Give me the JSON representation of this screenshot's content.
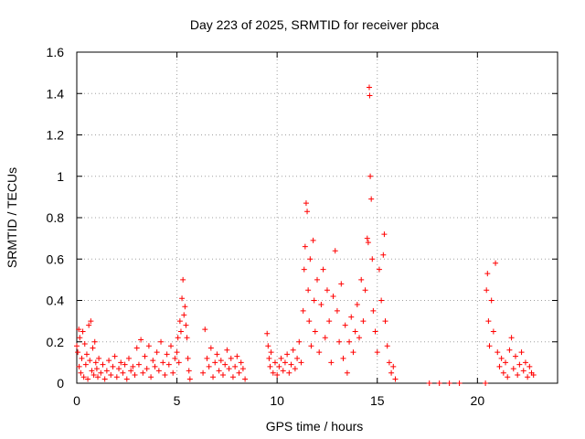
{
  "chart_data": {
    "type": "scatter",
    "title": "Day 223 of 2025, SRMTID for receiver pbca",
    "xlabel": "GPS time / hours",
    "ylabel": "SRMTID / TECUs",
    "xlim": [
      0,
      24
    ],
    "ylim": [
      0,
      1.6
    ],
    "x_ticks": [
      0,
      5,
      10,
      15,
      20
    ],
    "x_tick_labels": [
      "0",
      "5",
      "10",
      "15",
      "20"
    ],
    "y_ticks": [
      0,
      0.2,
      0.4,
      0.6,
      0.8,
      1.0,
      1.2,
      1.4,
      1.6
    ],
    "y_tick_labels": [
      "0",
      "0.2",
      "0.4",
      "0.6",
      "0.8",
      "1",
      "1.2",
      "1.4",
      "1.6"
    ],
    "grid": true,
    "marker": "+",
    "series": [
      {
        "name": "SRMTID",
        "color": "#ff0000",
        "points": [
          [
            0.0,
            0.18
          ],
          [
            0.05,
            0.15
          ],
          [
            0.1,
            0.26
          ],
          [
            0.12,
            0.08
          ],
          [
            0.15,
            0.22
          ],
          [
            0.2,
            0.05
          ],
          [
            0.25,
            0.12
          ],
          [
            0.3,
            0.25
          ],
          [
            0.35,
            0.03
          ],
          [
            0.4,
            0.19
          ],
          [
            0.45,
            0.09
          ],
          [
            0.5,
            0.14
          ],
          [
            0.55,
            0.02
          ],
          [
            0.6,
            0.28
          ],
          [
            0.65,
            0.11
          ],
          [
            0.7,
            0.3
          ],
          [
            0.75,
            0.06
          ],
          [
            0.8,
            0.17
          ],
          [
            0.85,
            0.04
          ],
          [
            0.9,
            0.2
          ],
          [
            0.95,
            0.1
          ],
          [
            1.0,
            0.07
          ],
          [
            1.05,
            0.03
          ],
          [
            1.1,
            0.12
          ],
          [
            1.2,
            0.05
          ],
          [
            1.3,
            0.09
          ],
          [
            1.4,
            0.02
          ],
          [
            1.5,
            0.06
          ],
          [
            1.6,
            0.11
          ],
          [
            1.7,
            0.04
          ],
          [
            1.8,
            0.08
          ],
          [
            1.9,
            0.13
          ],
          [
            2.0,
            0.03
          ],
          [
            2.1,
            0.07
          ],
          [
            2.2,
            0.1
          ],
          [
            2.3,
            0.05
          ],
          [
            2.4,
            0.09
          ],
          [
            2.5,
            0.02
          ],
          [
            2.6,
            0.12
          ],
          [
            2.7,
            0.06
          ],
          [
            2.8,
            0.08
          ],
          [
            2.9,
            0.04
          ],
          [
            3.0,
            0.17
          ],
          [
            3.1,
            0.09
          ],
          [
            3.2,
            0.21
          ],
          [
            3.3,
            0.05
          ],
          [
            3.4,
            0.13
          ],
          [
            3.5,
            0.07
          ],
          [
            3.6,
            0.18
          ],
          [
            3.7,
            0.03
          ],
          [
            3.8,
            0.11
          ],
          [
            3.9,
            0.08
          ],
          [
            4.0,
            0.15
          ],
          [
            4.1,
            0.06
          ],
          [
            4.2,
            0.2
          ],
          [
            4.3,
            0.1
          ],
          [
            4.4,
            0.04
          ],
          [
            4.5,
            0.14
          ],
          [
            4.6,
            0.09
          ],
          [
            4.7,
            0.18
          ],
          [
            4.8,
            0.05
          ],
          [
            4.9,
            0.12
          ],
          [
            5.0,
            0.15
          ],
          [
            5.05,
            0.22
          ],
          [
            5.1,
            0.1
          ],
          [
            5.15,
            0.3
          ],
          [
            5.2,
            0.25
          ],
          [
            5.25,
            0.41
          ],
          [
            5.3,
            0.5
          ],
          [
            5.35,
            0.33
          ],
          [
            5.4,
            0.37
          ],
          [
            5.45,
            0.28
          ],
          [
            5.5,
            0.22
          ],
          [
            5.55,
            0.12
          ],
          [
            5.6,
            0.06
          ],
          [
            5.65,
            0.02
          ],
          [
            6.3,
            0.05
          ],
          [
            6.4,
            0.26
          ],
          [
            6.5,
            0.12
          ],
          [
            6.6,
            0.08
          ],
          [
            6.7,
            0.17
          ],
          [
            6.8,
            0.03
          ],
          [
            6.9,
            0.1
          ],
          [
            7.0,
            0.14
          ],
          [
            7.1,
            0.06
          ],
          [
            7.2,
            0.11
          ],
          [
            7.3,
            0.04
          ],
          [
            7.4,
            0.09
          ],
          [
            7.5,
            0.16
          ],
          [
            7.6,
            0.07
          ],
          [
            7.7,
            0.12
          ],
          [
            7.8,
            0.03
          ],
          [
            7.9,
            0.08
          ],
          [
            8.0,
            0.13
          ],
          [
            8.1,
            0.05
          ],
          [
            8.2,
            0.1
          ],
          [
            8.3,
            0.07
          ],
          [
            8.4,
            0.02
          ],
          [
            9.5,
            0.24
          ],
          [
            9.55,
            0.18
          ],
          [
            9.6,
            0.12
          ],
          [
            9.65,
            0.08
          ],
          [
            9.7,
            0.15
          ],
          [
            9.8,
            0.05
          ],
          [
            9.9,
            0.1
          ],
          [
            10.0,
            0.04
          ],
          [
            10.1,
            0.08
          ],
          [
            10.2,
            0.12
          ],
          [
            10.3,
            0.06
          ],
          [
            10.4,
            0.1
          ],
          [
            10.5,
            0.14
          ],
          [
            10.6,
            0.05
          ],
          [
            10.7,
            0.09
          ],
          [
            10.8,
            0.16
          ],
          [
            10.9,
            0.07
          ],
          [
            11.0,
            0.12
          ],
          [
            11.1,
            0.2
          ],
          [
            11.2,
            0.1
          ],
          [
            11.3,
            0.35
          ],
          [
            11.35,
            0.55
          ],
          [
            11.4,
            0.66
          ],
          [
            11.45,
            0.87
          ],
          [
            11.5,
            0.83
          ],
          [
            11.55,
            0.45
          ],
          [
            11.6,
            0.3
          ],
          [
            11.65,
            0.6
          ],
          [
            11.7,
            0.18
          ],
          [
            11.8,
            0.69
          ],
          [
            11.85,
            0.4
          ],
          [
            11.9,
            0.25
          ],
          [
            12.0,
            0.5
          ],
          [
            12.1,
            0.15
          ],
          [
            12.2,
            0.38
          ],
          [
            12.3,
            0.55
          ],
          [
            12.4,
            0.22
          ],
          [
            12.5,
            0.45
          ],
          [
            12.6,
            0.3
          ],
          [
            12.7,
            0.1
          ],
          [
            12.8,
            0.42
          ],
          [
            12.9,
            0.64
          ],
          [
            13.0,
            0.35
          ],
          [
            13.1,
            0.2
          ],
          [
            13.2,
            0.48
          ],
          [
            13.3,
            0.12
          ],
          [
            13.4,
            0.28
          ],
          [
            13.5,
            0.05
          ],
          [
            13.6,
            0.2
          ],
          [
            13.7,
            0.32
          ],
          [
            13.8,
            0.15
          ],
          [
            13.9,
            0.25
          ],
          [
            14.0,
            0.38
          ],
          [
            14.1,
            0.22
          ],
          [
            14.2,
            0.5
          ],
          [
            14.3,
            0.3
          ],
          [
            14.4,
            0.45
          ],
          [
            14.5,
            0.7
          ],
          [
            14.55,
            0.68
          ],
          [
            14.6,
            1.43
          ],
          [
            14.62,
            1.39
          ],
          [
            14.65,
            1.0
          ],
          [
            14.7,
            0.89
          ],
          [
            14.75,
            0.6
          ],
          [
            14.8,
            0.35
          ],
          [
            14.9,
            0.25
          ],
          [
            15.0,
            0.15
          ],
          [
            15.1,
            0.55
          ],
          [
            15.2,
            0.4
          ],
          [
            15.3,
            0.62
          ],
          [
            15.35,
            0.72
          ],
          [
            15.4,
            0.3
          ],
          [
            15.5,
            0.18
          ],
          [
            15.6,
            0.1
          ],
          [
            15.7,
            0.05
          ],
          [
            15.8,
            0.08
          ],
          [
            15.9,
            0.02
          ],
          [
            17.6,
            0.0
          ],
          [
            18.1,
            0.0
          ],
          [
            18.6,
            0.0
          ],
          [
            19.1,
            0.0
          ],
          [
            20.4,
            0.0
          ],
          [
            20.45,
            0.45
          ],
          [
            20.5,
            0.53
          ],
          [
            20.55,
            0.3
          ],
          [
            20.6,
            0.18
          ],
          [
            20.7,
            0.4
          ],
          [
            20.8,
            0.25
          ],
          [
            20.9,
            0.58
          ],
          [
            21.0,
            0.15
          ],
          [
            21.1,
            0.08
          ],
          [
            21.2,
            0.12
          ],
          [
            21.3,
            0.05
          ],
          [
            21.4,
            0.1
          ],
          [
            21.5,
            0.03
          ],
          [
            21.6,
            0.16
          ],
          [
            21.7,
            0.22
          ],
          [
            21.8,
            0.07
          ],
          [
            21.9,
            0.13
          ],
          [
            22.0,
            0.04
          ],
          [
            22.1,
            0.09
          ],
          [
            22.2,
            0.15
          ],
          [
            22.3,
            0.06
          ],
          [
            22.4,
            0.1
          ],
          [
            22.5,
            0.03
          ],
          [
            22.6,
            0.08
          ],
          [
            22.7,
            0.05
          ],
          [
            22.8,
            0.04
          ]
        ]
      }
    ]
  }
}
